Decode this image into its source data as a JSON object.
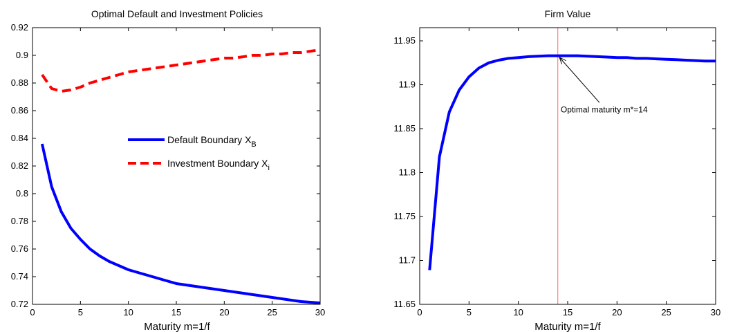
{
  "chart_data": [
    {
      "type": "line",
      "title": "Optimal Default and Investment Policies",
      "xlabel": "Maturity m=1/f",
      "ylabel": "",
      "xlim": [
        0,
        30
      ],
      "ylim": [
        0.72,
        0.92
      ],
      "xticks": [
        0,
        5,
        10,
        15,
        20,
        25,
        30
      ],
      "yticks": [
        0.72,
        0.74,
        0.76,
        0.78,
        0.8,
        0.82,
        0.84,
        0.86,
        0.88,
        0.9,
        0.92
      ],
      "ytick_labels": [
        "0.72",
        "0.74",
        "0.76",
        "0.78",
        "0.8",
        "0.82",
        "0.84",
        "0.86",
        "0.88",
        "0.9",
        "0.92"
      ],
      "grid": false,
      "legend_position": "center-right",
      "series": [
        {
          "name": "Default Boundary X",
          "name_subscript": "B",
          "color": "#0000ff",
          "style": "solid",
          "x": [
            1,
            2,
            3,
            4,
            5,
            6,
            7,
            8,
            9,
            10,
            11,
            12,
            13,
            14,
            15,
            16,
            17,
            18,
            19,
            20,
            21,
            22,
            23,
            24,
            25,
            26,
            27,
            28,
            29,
            30
          ],
          "y": [
            0.836,
            0.805,
            0.787,
            0.775,
            0.767,
            0.76,
            0.755,
            0.751,
            0.748,
            0.745,
            0.743,
            0.741,
            0.739,
            0.737,
            0.735,
            0.734,
            0.733,
            0.732,
            0.731,
            0.73,
            0.729,
            0.728,
            0.727,
            0.726,
            0.725,
            0.724,
            0.723,
            0.722,
            0.7215,
            0.721
          ]
        },
        {
          "name": "Investment Boundary X",
          "name_subscript": "i",
          "color": "#ff0000",
          "style": "dashed",
          "x": [
            1,
            2,
            3,
            4,
            5,
            6,
            7,
            8,
            9,
            10,
            11,
            12,
            13,
            14,
            15,
            16,
            17,
            18,
            19,
            20,
            21,
            22,
            23,
            24,
            25,
            26,
            27,
            28,
            29,
            30
          ],
          "y": [
            0.886,
            0.876,
            0.874,
            0.875,
            0.877,
            0.88,
            0.882,
            0.884,
            0.886,
            0.888,
            0.889,
            0.89,
            0.891,
            0.892,
            0.893,
            0.894,
            0.895,
            0.896,
            0.897,
            0.898,
            0.898,
            0.899,
            0.9,
            0.9,
            0.901,
            0.901,
            0.902,
            0.902,
            0.903,
            0.904
          ]
        }
      ]
    },
    {
      "type": "line",
      "title": "Firm Value",
      "xlabel": "Maturity m=1/f",
      "ylabel": "",
      "xlim": [
        0,
        30
      ],
      "ylim": [
        11.65,
        11.965
      ],
      "xticks": [
        0,
        5,
        10,
        15,
        20,
        25,
        30
      ],
      "yticks": [
        11.65,
        11.7,
        11.75,
        11.8,
        11.85,
        11.9,
        11.95
      ],
      "ytick_labels": [
        "11.65",
        "11.7",
        "11.75",
        "11.8",
        "11.85",
        "11.9",
        "11.95"
      ],
      "grid": false,
      "series": [
        {
          "name": "",
          "color": "#0000ff",
          "style": "solid",
          "x": [
            1,
            2,
            3,
            4,
            5,
            6,
            7,
            8,
            9,
            10,
            11,
            12,
            13,
            14,
            15,
            16,
            17,
            18,
            19,
            20,
            21,
            22,
            23,
            24,
            25,
            26,
            27,
            28,
            29,
            30
          ],
          "y": [
            11.689,
            11.818,
            11.869,
            11.894,
            11.909,
            11.919,
            11.925,
            11.928,
            11.93,
            11.931,
            11.932,
            11.9325,
            11.933,
            11.933,
            11.933,
            11.933,
            11.9325,
            11.932,
            11.9315,
            11.931,
            11.931,
            11.93,
            11.93,
            11.9295,
            11.929,
            11.9285,
            11.928,
            11.9275,
            11.927,
            11.927
          ]
        }
      ],
      "vline": {
        "x": 14,
        "color": "#ff6666"
      },
      "annotation": {
        "text": "Optimal maturity m*=14",
        "point": [
          14,
          11.933
        ],
        "text_at": [
          18.5,
          11.875
        ]
      }
    }
  ]
}
